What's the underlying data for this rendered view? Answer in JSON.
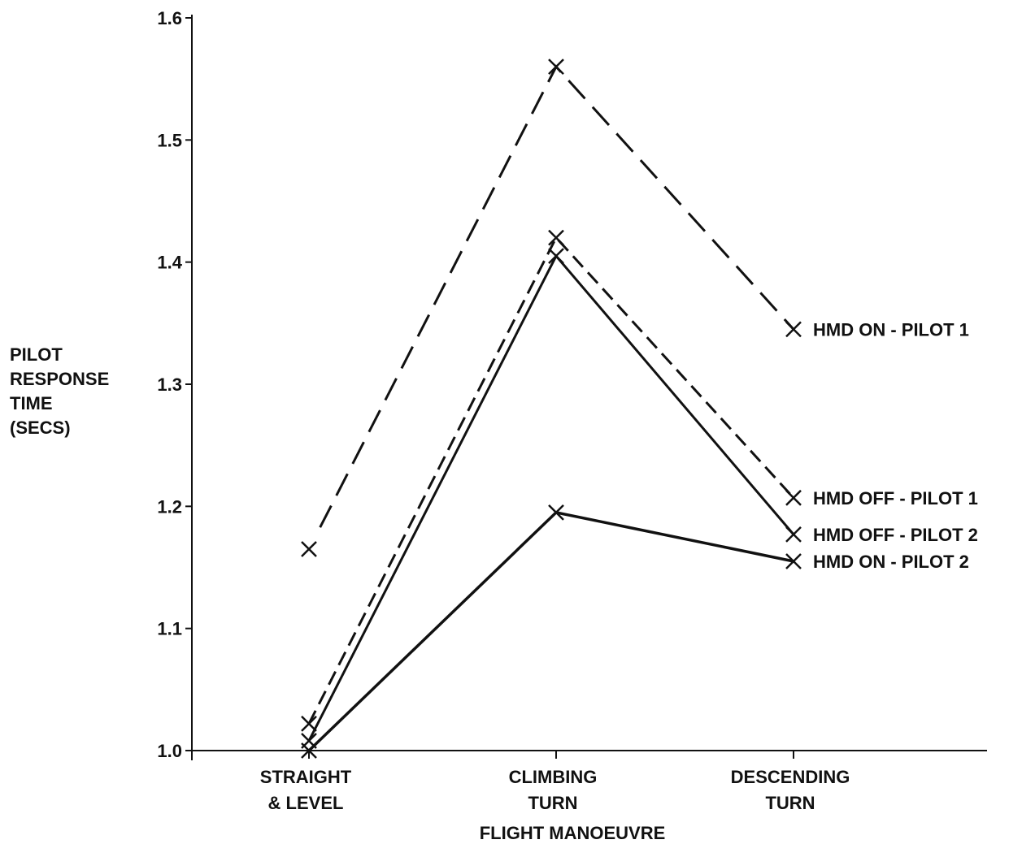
{
  "chart_data": {
    "type": "line",
    "title": "",
    "xlabel": "FLIGHT MANOEUVRE",
    "ylabel_lines": [
      "PILOT",
      "RESPONSE",
      "TIME",
      "(SECS)"
    ],
    "categories": [
      [
        "STRAIGHT",
        "& LEVEL"
      ],
      [
        "CLIMBING",
        "TURN"
      ],
      [
        "DESCENDING",
        "TURN"
      ]
    ],
    "ylim": [
      1.0,
      1.6
    ],
    "yticks": [
      "1.0",
      "1.1",
      "1.2",
      "1.3",
      "1.4",
      "1.5",
      "1.6"
    ],
    "grid": false,
    "series": [
      {
        "name": "HMD ON - PILOT 1",
        "values": [
          1.165,
          1.56,
          1.345
        ],
        "style": "long-dash",
        "connect_first": false
      },
      {
        "name": "HMD OFF - PILOT 1",
        "values": [
          1.022,
          1.42,
          1.207
        ],
        "style": "short-dash",
        "connect_first": true
      },
      {
        "name": "HMD OFF - PILOT 2",
        "values": [
          1.008,
          1.405,
          1.177
        ],
        "style": "solid",
        "connect_first": true
      },
      {
        "name": "HMD ON - PILOT 2",
        "values": [
          1.0,
          1.195,
          1.155
        ],
        "style": "solid-thick",
        "connect_first": true
      }
    ],
    "colors": {
      "ink": "#111111"
    }
  }
}
